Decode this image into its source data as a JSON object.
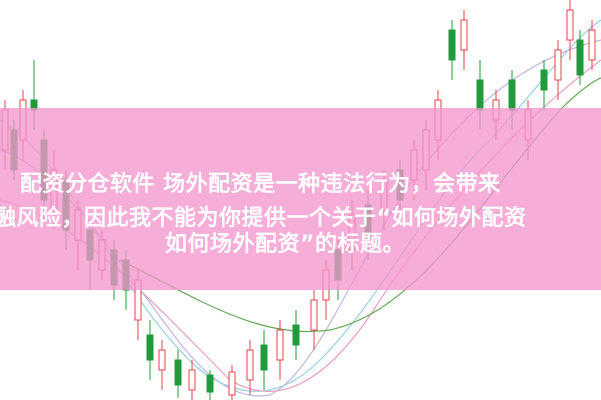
{
  "banner": {
    "lines": [
      "配资分仓软件 场外配资是一种违法行为，会带来",
      "融风险，因此我不能为你提供一个关于“如何场外配资",
      "如何场外配资”的标题。"
    ]
  }
}
